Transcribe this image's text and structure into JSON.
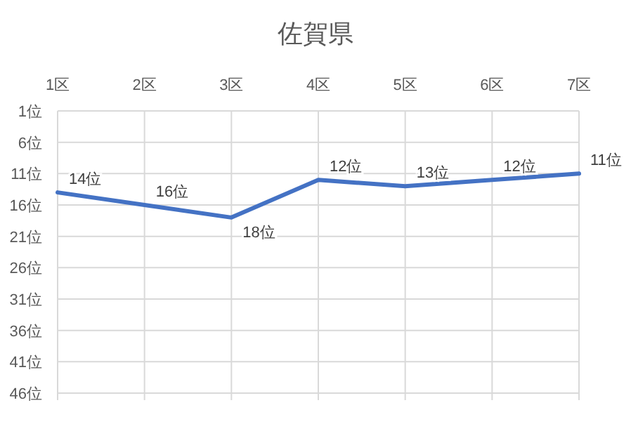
{
  "chart_data": {
    "type": "line",
    "title": "佐賀県",
    "categories": [
      "1区",
      "2区",
      "3区",
      "4区",
      "5区",
      "6区",
      "7区"
    ],
    "series": [
      {
        "color": "#4472c4",
        "values": [
          14,
          16,
          18,
          12,
          13,
          12,
          11
        ],
        "value_labels": [
          "14位",
          "16位",
          "18位",
          "12位",
          "13位",
          "12位",
          "11位"
        ]
      }
    ],
    "ylim": [
      46,
      1
    ],
    "yticks": [
      {
        "value": 1,
        "label": "1位"
      },
      {
        "value": 6,
        "label": "6位"
      },
      {
        "value": 11,
        "label": "11位"
      },
      {
        "value": 16,
        "label": "16位"
      },
      {
        "value": 21,
        "label": "21位"
      },
      {
        "value": 26,
        "label": "26位"
      },
      {
        "value": 31,
        "label": "31位"
      },
      {
        "value": 36,
        "label": "36位"
      },
      {
        "value": 41,
        "label": "41位"
      },
      {
        "value": 46,
        "label": "46位"
      }
    ],
    "grid": true
  }
}
